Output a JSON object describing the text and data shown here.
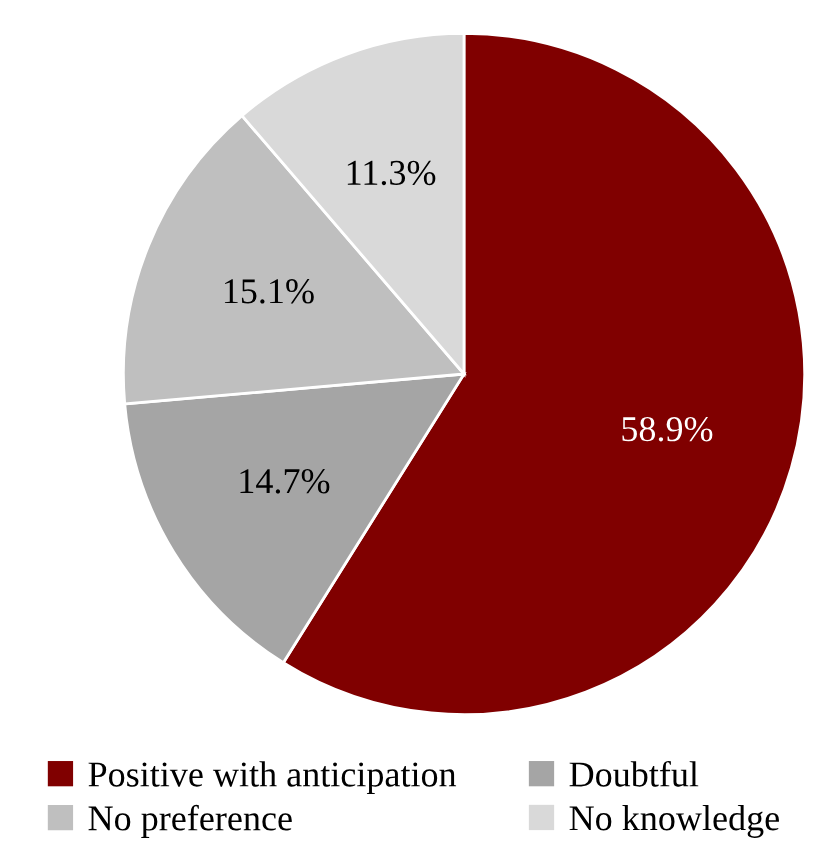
{
  "chart_data": {
    "type": "pie",
    "categories": [
      "Positive with anticipation",
      "Doubtful",
      "No preference",
      "No knowledge"
    ],
    "values": [
      58.9,
      14.7,
      15.1,
      11.3
    ],
    "colors": [
      "#800000",
      "#a5a5a5",
      "#bfbfbf",
      "#d9d9d9"
    ],
    "value_labels": [
      "58.9%",
      "14.7%",
      "15.1%",
      "11.3%"
    ],
    "legend": "bottom"
  }
}
